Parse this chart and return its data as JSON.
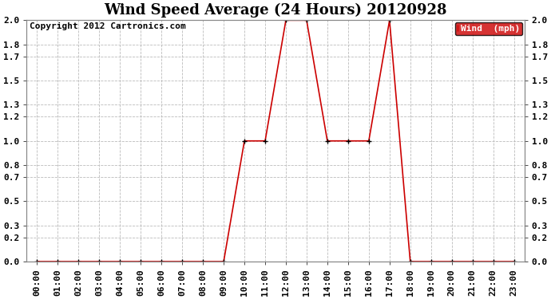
{
  "title": "Wind Speed Average (24 Hours) 20120928",
  "copyright_text": "Copyright 2012 Cartronics.com",
  "legend_label": "Wind  (mph)",
  "legend_bg": "#cc0000",
  "legend_text_color": "#ffffff",
  "x_labels": [
    "00:00",
    "01:00",
    "02:00",
    "03:00",
    "04:00",
    "05:00",
    "06:00",
    "07:00",
    "08:00",
    "09:00",
    "10:00",
    "11:00",
    "12:00",
    "13:00",
    "14:00",
    "15:00",
    "16:00",
    "17:00",
    "18:00",
    "19:00",
    "20:00",
    "21:00",
    "22:00",
    "23:00"
  ],
  "y_ticks": [
    0.0,
    0.2,
    0.3,
    0.5,
    0.7,
    0.8,
    1.0,
    1.2,
    1.3,
    1.5,
    1.7,
    1.8,
    2.0
  ],
  "ylim": [
    0.0,
    2.0
  ],
  "time_values": [
    0,
    1,
    2,
    3,
    4,
    5,
    6,
    7,
    8,
    9,
    10,
    11,
    12,
    13,
    14,
    15,
    16,
    17,
    18,
    19,
    20,
    21,
    22,
    23
  ],
  "wind_values": [
    0,
    0,
    0,
    0,
    0,
    0,
    0,
    0,
    0,
    0,
    1.0,
    1.0,
    2.0,
    2.0,
    1.0,
    1.0,
    1.0,
    2.0,
    0,
    0,
    0,
    0,
    0,
    0
  ],
  "line_color": "#cc0000",
  "marker": "+",
  "marker_color": "#000000",
  "marker_size": 4,
  "bg_color": "#ffffff",
  "grid_color": "#bbbbbb",
  "title_fontsize": 13,
  "tick_fontsize": 8,
  "copyright_fontsize": 8,
  "fig_width": 6.9,
  "fig_height": 3.75,
  "dpi": 100
}
